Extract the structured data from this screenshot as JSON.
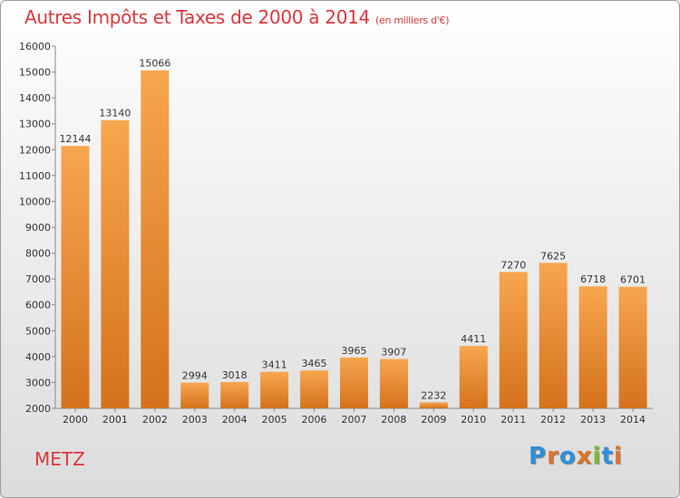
{
  "header": {
    "title": "Autres Impôts et Taxes de 2000 à 2014",
    "unit": "(en milliers d'€)"
  },
  "footer": {
    "city": "METZ",
    "brand": "Proxiti"
  },
  "colors": {
    "bar_top": "#f7a64f",
    "bar_bottom": "#d4721c",
    "title": "#d8393d",
    "logo_letters": [
      "#2f8fd8",
      "#e0732a",
      "#2f8fd8",
      "#e0732a",
      "#7dbb2e",
      "#2f8fd8",
      "#e0732a"
    ]
  },
  "chart_data": {
    "type": "bar",
    "title": "Autres Impôts et Taxes de 2000 à 2014",
    "subtitle": "(en milliers d'€)",
    "categories": [
      "2000",
      "2001",
      "2002",
      "2003",
      "2004",
      "2005",
      "2006",
      "2007",
      "2008",
      "2009",
      "2010",
      "2011",
      "2012",
      "2013",
      "2014"
    ],
    "values": [
      12144,
      13140,
      15066,
      2994,
      3018,
      3411,
      3465,
      3965,
      3907,
      2232,
      4411,
      7270,
      7625,
      6718,
      6701
    ],
    "ylim": [
      2000,
      16000
    ],
    "yticks": [
      2000,
      3000,
      4000,
      5000,
      6000,
      7000,
      8000,
      9000,
      10000,
      11000,
      12000,
      13000,
      14000,
      15000,
      16000
    ],
    "grid": false,
    "legend": "none",
    "data_labels": true
  }
}
